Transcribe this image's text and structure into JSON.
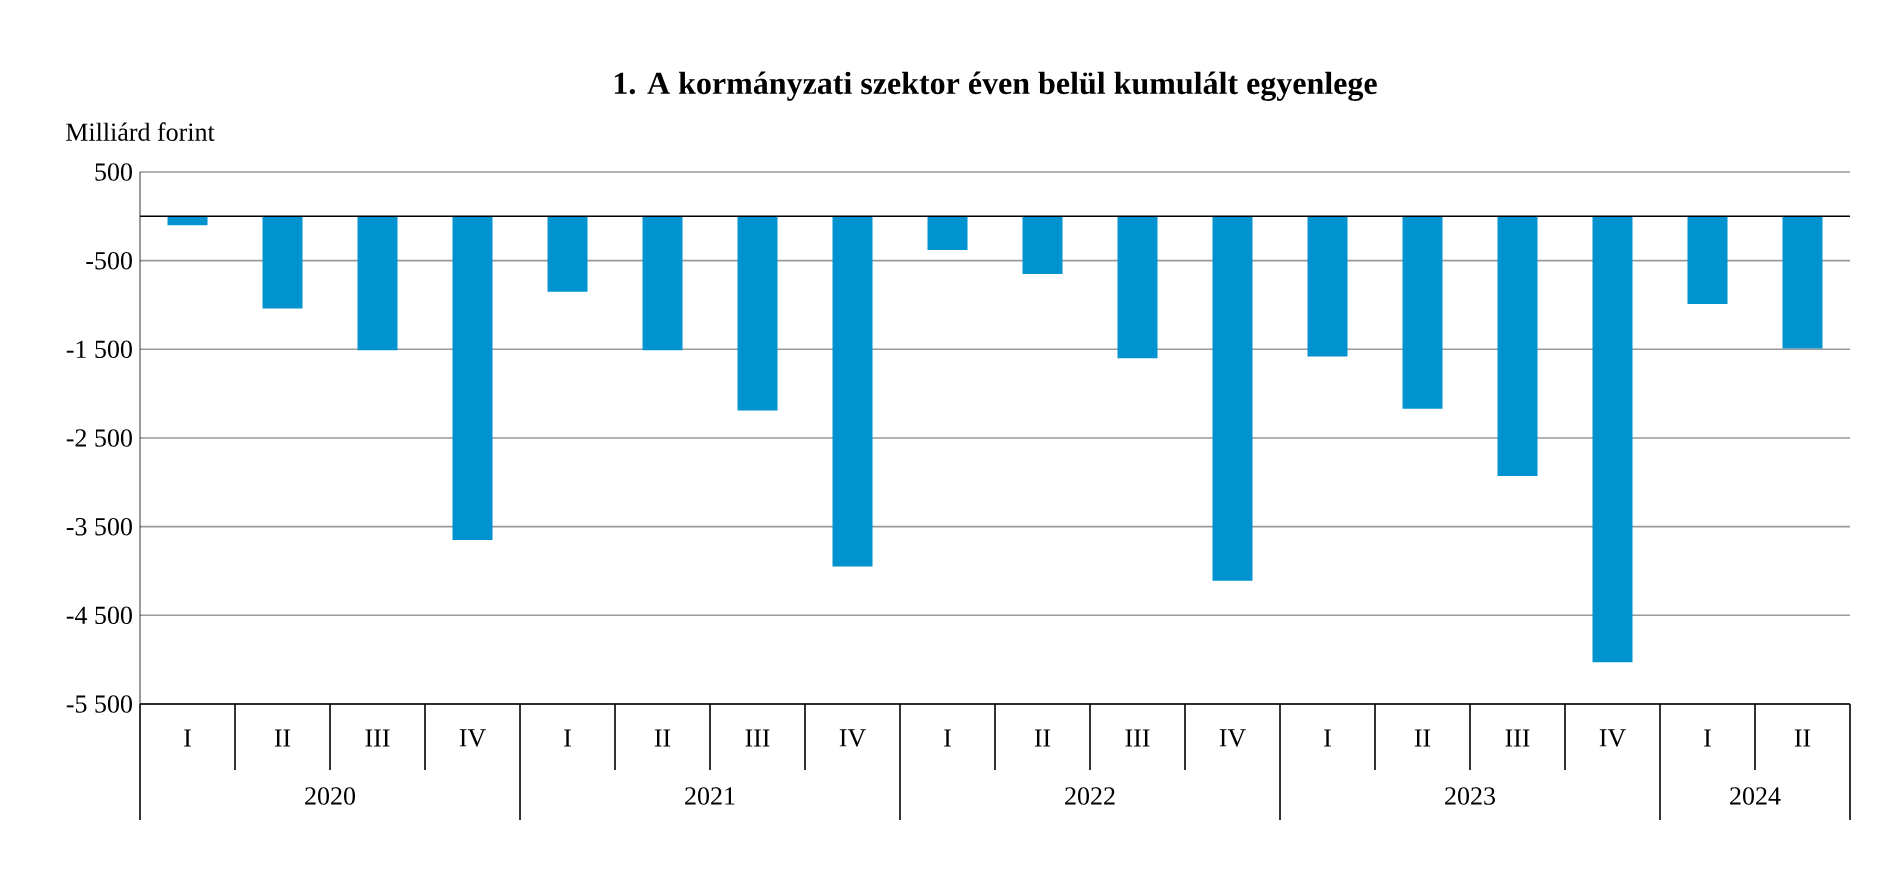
{
  "chart_data": {
    "type": "bar",
    "title": "1. A kormányzati szektor éven belül kumulált egyenlege",
    "ylabel": "Milliárd forint",
    "categories": [
      "I",
      "II",
      "III",
      "IV",
      "I",
      "II",
      "III",
      "IV",
      "I",
      "II",
      "III",
      "IV",
      "I",
      "II",
      "III",
      "IV",
      "I",
      "II"
    ],
    "values": [
      -100,
      -1040,
      -1510,
      -3650,
      -850,
      -1510,
      -2190,
      -3950,
      -380,
      -650,
      -1600,
      -4110,
      -1580,
      -2170,
      -2930,
      -5030,
      -990,
      -1490
    ],
    "color": "#0093d0",
    "annotations": [
      "2020",
      "2021",
      "2022",
      "2023",
      "2024"
    ],
    "ylim": [
      -5500,
      500
    ],
    "yticks": [
      {
        "value": 500,
        "label": "500"
      },
      {
        "value": -500,
        "label": "-500"
      },
      {
        "value": -1500,
        "label": "-1 500"
      },
      {
        "value": -2500,
        "label": "-2 500"
      },
      {
        "value": -3500,
        "label": "-3 500"
      },
      {
        "value": -4500,
        "label": "-4 500"
      },
      {
        "value": -5500,
        "label": "-5 500"
      }
    ],
    "grid": "y"
  }
}
